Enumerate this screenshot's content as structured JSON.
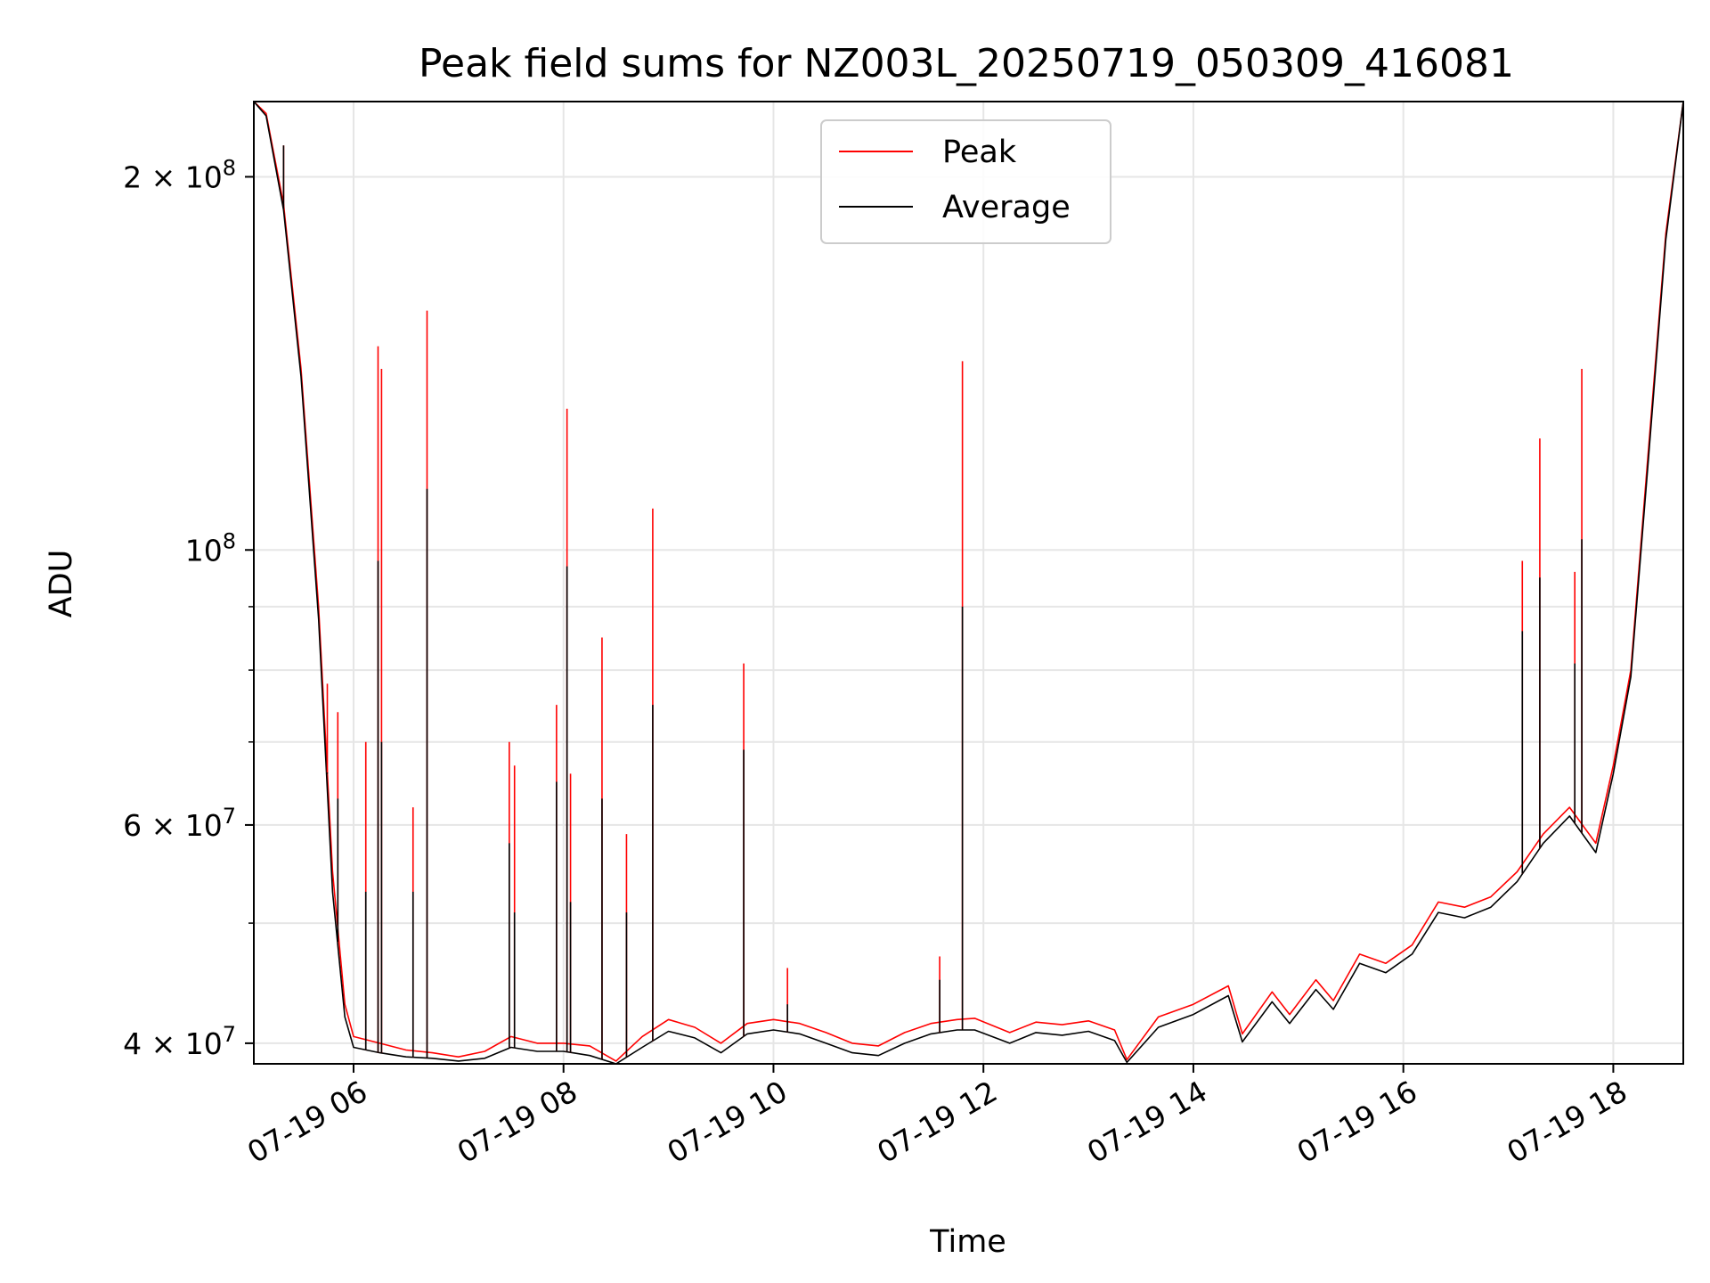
{
  "chart_data": {
    "type": "line",
    "title": "Peak field sums for NZ003L_20250719_050309_416081",
    "xlabel": "Time",
    "ylabel": "ADU",
    "yscale": "log",
    "ylim": [
      38500000,
      230000000
    ],
    "xlim": [
      "2025-07-19 05:03",
      "2025-07-19 18:40"
    ],
    "grid": true,
    "legend_location": "upper center",
    "x_ticks": [
      {
        "value": "2025-07-19 06:00",
        "label": "07-19 06"
      },
      {
        "value": "2025-07-19 08:00",
        "label": "07-19 08"
      },
      {
        "value": "2025-07-19 10:00",
        "label": "07-19 10"
      },
      {
        "value": "2025-07-19 12:00",
        "label": "07-19 12"
      },
      {
        "value": "2025-07-19 14:00",
        "label": "07-19 14"
      },
      {
        "value": "2025-07-19 16:00",
        "label": "07-19 16"
      },
      {
        "value": "2025-07-19 18:00",
        "label": "07-19 18"
      }
    ],
    "y_major_ticks": [
      {
        "value": 40000000,
        "mantissa": "4",
        "exp": "7"
      },
      {
        "value": 60000000,
        "mantissa": "6",
        "exp": "7"
      },
      {
        "value": 100000000,
        "mantissa": "",
        "exp": "8"
      },
      {
        "value": 200000000,
        "mantissa": "2",
        "exp": "8"
      }
    ],
    "y_minor_ticks": [
      50000000,
      70000000,
      80000000,
      90000000
    ],
    "series": [
      {
        "name": "Peak",
        "color": "#ff0000",
        "x": [
          "2025-07-19 05:03",
          "2025-07-19 05:10",
          "2025-07-19 05:20",
          "2025-07-19 05:30",
          "2025-07-19 05:40",
          "2025-07-19 05:48",
          "2025-07-19 05:55",
          "2025-07-19 06:00",
          "2025-07-19 06:15",
          "2025-07-19 06:30",
          "2025-07-19 06:45",
          "2025-07-19 07:00",
          "2025-07-19 07:15",
          "2025-07-19 07:30",
          "2025-07-19 07:45",
          "2025-07-19 08:00",
          "2025-07-19 08:15",
          "2025-07-19 08:30",
          "2025-07-19 08:45",
          "2025-07-19 09:00",
          "2025-07-19 09:15",
          "2025-07-19 09:30",
          "2025-07-19 09:45",
          "2025-07-19 10:00",
          "2025-07-19 10:15",
          "2025-07-19 10:30",
          "2025-07-19 10:45",
          "2025-07-19 11:00",
          "2025-07-19 11:15",
          "2025-07-19 11:30",
          "2025-07-19 11:45",
          "2025-07-19 11:55",
          "2025-07-19 12:15",
          "2025-07-19 12:30",
          "2025-07-19 12:45",
          "2025-07-19 13:00",
          "2025-07-19 13:15",
          "2025-07-19 13:22",
          "2025-07-19 13:40",
          "2025-07-19 14:00",
          "2025-07-19 14:20",
          "2025-07-19 14:28",
          "2025-07-19 14:45",
          "2025-07-19 14:55",
          "2025-07-19 15:10",
          "2025-07-19 15:20",
          "2025-07-19 15:35",
          "2025-07-19 15:50",
          "2025-07-19 16:05",
          "2025-07-19 16:20",
          "2025-07-19 16:35",
          "2025-07-19 16:50",
          "2025-07-19 17:05",
          "2025-07-19 17:20",
          "2025-07-19 17:35",
          "2025-07-19 17:50",
          "2025-07-19 18:00",
          "2025-07-19 18:10",
          "2025-07-19 18:20",
          "2025-07-19 18:30",
          "2025-07-19 18:40"
        ],
        "y": [
          230000000,
          225000000,
          190000000,
          140000000,
          90000000,
          55000000,
          43000000,
          40500000,
          40000000,
          39500000,
          39300000,
          39000000,
          39400000,
          40500000,
          40000000,
          40000000,
          39800000,
          38700000,
          40500000,
          41800000,
          41200000,
          40000000,
          41500000,
          41800000,
          41500000,
          40800000,
          40000000,
          39800000,
          40800000,
          41500000,
          41800000,
          41900000,
          40800000,
          41600000,
          41400000,
          41700000,
          41000000,
          38800000,
          42000000,
          43000000,
          44500000,
          40700000,
          44000000,
          42200000,
          45000000,
          43300000,
          47200000,
          46400000,
          48000000,
          52000000,
          51500000,
          52500000,
          55000000,
          59000000,
          62000000,
          58000000,
          67000000,
          80000000,
          120000000,
          180000000,
          230000000
        ]
      },
      {
        "name": "Average",
        "color": "#000000",
        "x": [
          "2025-07-19 05:03",
          "2025-07-19 05:10",
          "2025-07-19 05:20",
          "2025-07-19 05:30",
          "2025-07-19 05:40",
          "2025-07-19 05:48",
          "2025-07-19 05:55",
          "2025-07-19 06:00",
          "2025-07-19 06:15",
          "2025-07-19 06:30",
          "2025-07-19 06:45",
          "2025-07-19 07:00",
          "2025-07-19 07:15",
          "2025-07-19 07:30",
          "2025-07-19 07:45",
          "2025-07-19 08:00",
          "2025-07-19 08:15",
          "2025-07-19 08:30",
          "2025-07-19 08:45",
          "2025-07-19 09:00",
          "2025-07-19 09:15",
          "2025-07-19 09:30",
          "2025-07-19 09:45",
          "2025-07-19 10:00",
          "2025-07-19 10:15",
          "2025-07-19 10:30",
          "2025-07-19 10:45",
          "2025-07-19 11:00",
          "2025-07-19 11:15",
          "2025-07-19 11:30",
          "2025-07-19 11:45",
          "2025-07-19 11:55",
          "2025-07-19 12:15",
          "2025-07-19 12:30",
          "2025-07-19 12:45",
          "2025-07-19 13:00",
          "2025-07-19 13:15",
          "2025-07-19 13:22",
          "2025-07-19 13:40",
          "2025-07-19 14:00",
          "2025-07-19 14:20",
          "2025-07-19 14:28",
          "2025-07-19 14:45",
          "2025-07-19 14:55",
          "2025-07-19 15:10",
          "2025-07-19 15:20",
          "2025-07-19 15:35",
          "2025-07-19 15:50",
          "2025-07-19 16:05",
          "2025-07-19 16:20",
          "2025-07-19 16:35",
          "2025-07-19 16:50",
          "2025-07-19 17:05",
          "2025-07-19 17:20",
          "2025-07-19 17:35",
          "2025-07-19 17:50",
          "2025-07-19 18:00",
          "2025-07-19 18:10",
          "2025-07-19 18:20",
          "2025-07-19 18:30",
          "2025-07-19 18:40"
        ],
        "y": [
          230000000,
          224000000,
          188000000,
          138000000,
          88000000,
          53000000,
          42000000,
          39700000,
          39300000,
          39000000,
          38900000,
          38700000,
          38900000,
          39700000,
          39400000,
          39400000,
          39100000,
          38500000,
          39700000,
          40900000,
          40400000,
          39300000,
          40700000,
          41000000,
          40700000,
          40000000,
          39300000,
          39100000,
          40000000,
          40700000,
          41000000,
          41000000,
          40000000,
          40800000,
          40600000,
          40900000,
          40200000,
          38600000,
          41200000,
          42200000,
          43700000,
          40100000,
          43200000,
          41500000,
          44200000,
          42600000,
          46400000,
          45600000,
          47200000,
          51000000,
          50500000,
          51500000,
          54000000,
          58000000,
          61000000,
          57000000,
          66000000,
          79000000,
          118000000,
          178000000,
          230000000
        ]
      }
    ],
    "spikes": [
      {
        "x": "2025-07-19 05:20",
        "peak": 212000000,
        "avg": 212000000
      },
      {
        "x": "2025-07-19 05:45",
        "peak": 78000000,
        "avg": 66000000
      },
      {
        "x": "2025-07-19 05:51",
        "peak": 74000000,
        "avg": 63000000
      },
      {
        "x": "2025-07-19 06:07",
        "peak": 70000000,
        "avg": 53000000
      },
      {
        "x": "2025-07-19 06:14",
        "peak": 146000000,
        "avg": 98000000
      },
      {
        "x": "2025-07-19 06:16",
        "peak": 140000000,
        "avg": 70000000
      },
      {
        "x": "2025-07-19 06:34",
        "peak": 62000000,
        "avg": 53000000
      },
      {
        "x": "2025-07-19 06:42",
        "peak": 156000000,
        "avg": 112000000
      },
      {
        "x": "2025-07-19 07:29",
        "peak": 70000000,
        "avg": 58000000
      },
      {
        "x": "2025-07-19 07:32",
        "peak": 67000000,
        "avg": 51000000
      },
      {
        "x": "2025-07-19 07:56",
        "peak": 75000000,
        "avg": 65000000
      },
      {
        "x": "2025-07-19 08:02",
        "peak": 130000000,
        "avg": 97000000
      },
      {
        "x": "2025-07-19 08:04",
        "peak": 66000000,
        "avg": 52000000
      },
      {
        "x": "2025-07-19 08:22",
        "peak": 85000000,
        "avg": 63000000
      },
      {
        "x": "2025-07-19 08:36",
        "peak": 59000000,
        "avg": 51000000
      },
      {
        "x": "2025-07-19 08:51",
        "peak": 108000000,
        "avg": 75000000
      },
      {
        "x": "2025-07-19 09:43",
        "peak": 81000000,
        "avg": 69000000
      },
      {
        "x": "2025-07-19 10:08",
        "peak": 46000000,
        "avg": 43000000
      },
      {
        "x": "2025-07-19 11:35",
        "peak": 47000000,
        "avg": 45000000
      },
      {
        "x": "2025-07-19 11:48",
        "peak": 142000000,
        "avg": 90000000
      },
      {
        "x": "2025-07-19 17:08",
        "peak": 98000000,
        "avg": 86000000
      },
      {
        "x": "2025-07-19 17:18",
        "peak": 123000000,
        "avg": 95000000
      },
      {
        "x": "2025-07-19 17:38",
        "peak": 96000000,
        "avg": 81000000
      },
      {
        "x": "2025-07-19 17:42",
        "peak": 140000000,
        "avg": 102000000
      }
    ]
  }
}
